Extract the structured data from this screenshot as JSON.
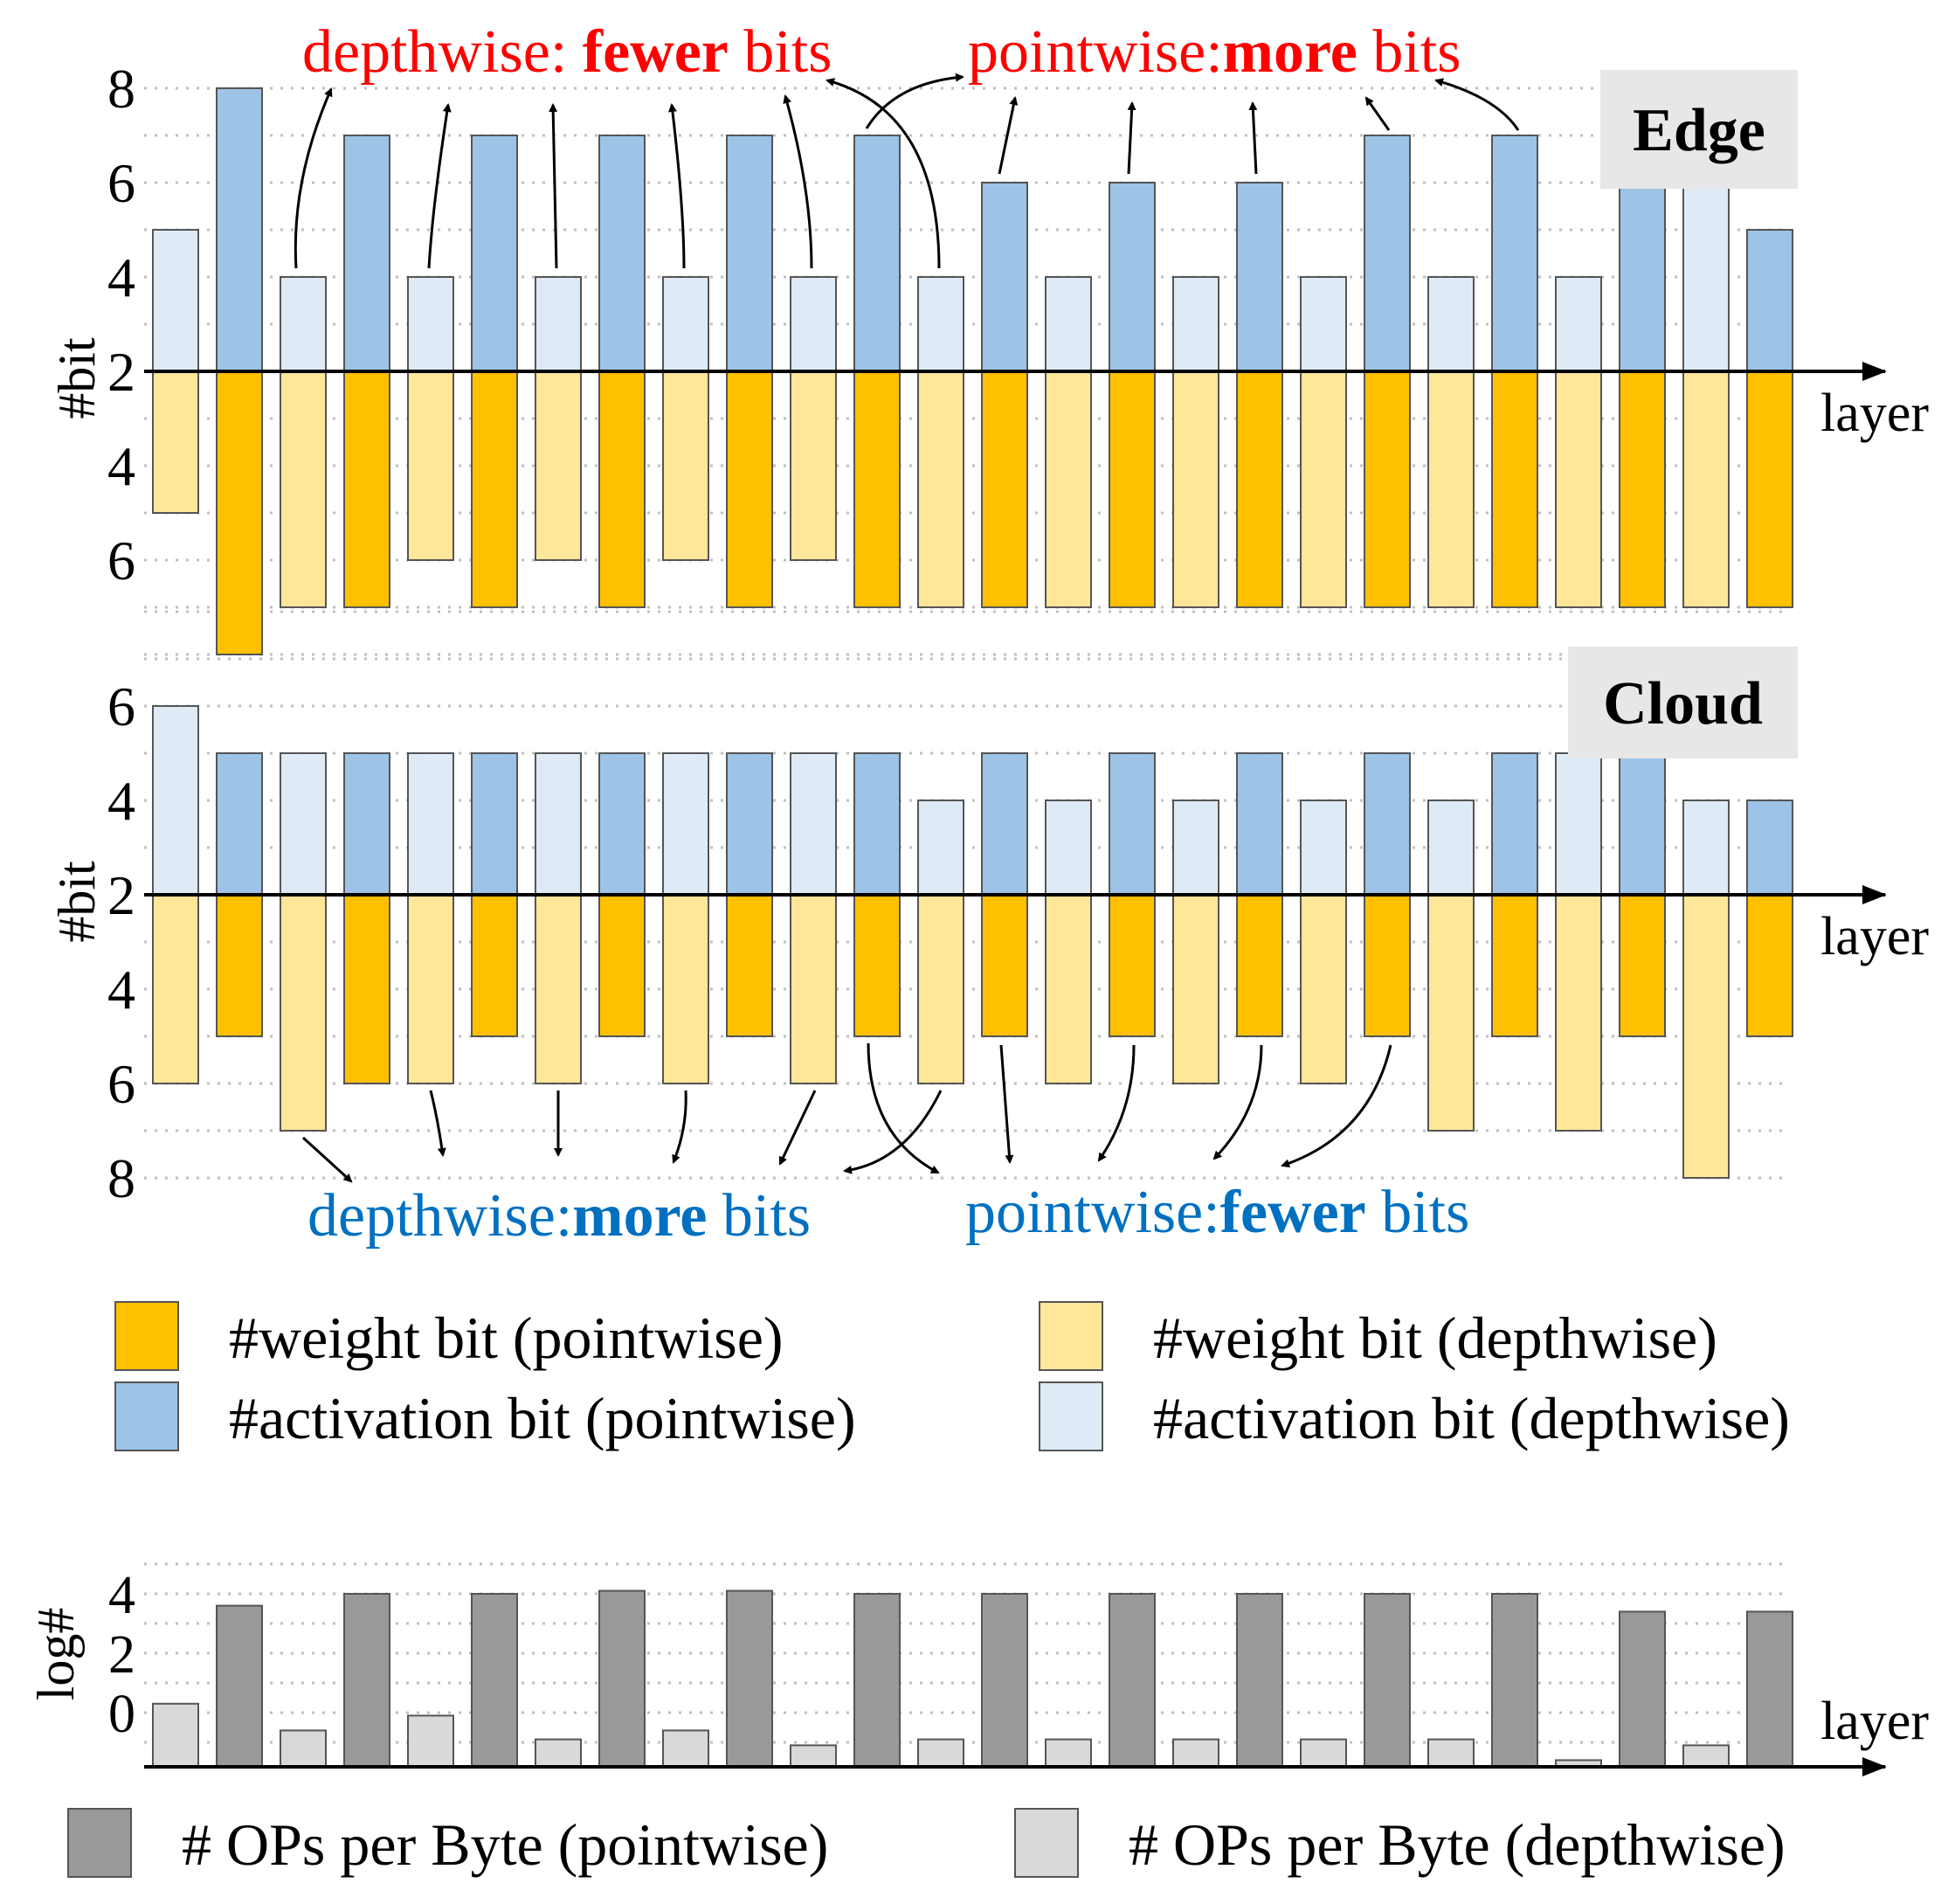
{
  "colors": {
    "pw_weight": "#FFC000",
    "dw_weight": "#FFE699",
    "pw_act": "#9DC3E6",
    "dw_act": "#DEEBF7",
    "ops_pw": "#999999",
    "ops_dw": "#D9D9D9",
    "red": "#FF0000",
    "blue": "#0070C0",
    "tag_bg": "#E7E7E7"
  },
  "chart_data": [
    {
      "name": "edge",
      "type": "bar",
      "tag": "Edge",
      "ylabel": "#bit",
      "xlabel": "layer",
      "y_ticks_up": [
        "8",
        "6",
        "4",
        "2"
      ],
      "y_ticks_down": [
        "4",
        "6"
      ],
      "layer_types": [
        "dw",
        "pw",
        "dw",
        "pw",
        "dw",
        "pw",
        "dw",
        "pw",
        "dw",
        "pw",
        "dw",
        "pw",
        "dw",
        "pw",
        "dw",
        "pw",
        "dw",
        "pw",
        "dw",
        "pw",
        "dw",
        "pw",
        "dw",
        "pw",
        "dw",
        "pw"
      ],
      "activation_bits": [
        5,
        8,
        4,
        7,
        4,
        7,
        4,
        7,
        4,
        7,
        4,
        7,
        4,
        6,
        4,
        6,
        4,
        6,
        4,
        7,
        4,
        7,
        4,
        6,
        6,
        5
      ],
      "weight_bits": [
        5,
        8,
        7,
        7,
        6,
        7,
        6,
        7,
        6,
        7,
        6,
        7,
        7,
        7,
        7,
        7,
        7,
        7,
        7,
        7,
        7,
        7,
        7,
        7,
        7,
        7
      ],
      "annotations": {
        "depthwise_prefix": "depthwise: ",
        "depthwise_bold": "fewer",
        "depthwise_suffix": " bits",
        "pointwise_prefix": "pointwise:",
        "pointwise_bold": "more",
        "pointwise_suffix": " bits"
      }
    },
    {
      "name": "cloud",
      "type": "bar",
      "tag": "Cloud",
      "ylabel": "#bit",
      "xlabel": "layer",
      "y_ticks_up": [
        "6",
        "4",
        "2"
      ],
      "y_ticks_down": [
        "4",
        "6",
        "8"
      ],
      "layer_types": [
        "dw",
        "pw",
        "dw",
        "pw",
        "dw",
        "pw",
        "dw",
        "pw",
        "dw",
        "pw",
        "dw",
        "pw",
        "dw",
        "pw",
        "dw",
        "pw",
        "dw",
        "pw",
        "dw",
        "pw",
        "dw",
        "pw",
        "dw",
        "pw",
        "dw",
        "pw"
      ],
      "activation_bits": [
        6,
        5,
        5,
        5,
        5,
        5,
        5,
        5,
        5,
        5,
        5,
        5,
        4,
        5,
        4,
        5,
        4,
        5,
        4,
        5,
        4,
        5,
        5,
        5,
        4,
        4
      ],
      "weight_bits": [
        6,
        5,
        7,
        6,
        6,
        5,
        6,
        5,
        6,
        5,
        6,
        5,
        6,
        5,
        6,
        5,
        6,
        5,
        6,
        5,
        7,
        5,
        7,
        5,
        8,
        5
      ],
      "annotations": {
        "depthwise_prefix": "depthwise:",
        "depthwise_bold": "more",
        "depthwise_suffix": " bits",
        "pointwise_prefix": "pointwise:",
        "pointwise_bold": "fewer",
        "pointwise_suffix": " bits"
      }
    },
    {
      "name": "ops",
      "type": "bar",
      "ylabel": "log#",
      "xlabel": "layer",
      "y_ticks": [
        "4",
        "2",
        "0"
      ],
      "layer_types": [
        "dw",
        "pw",
        "dw",
        "pw",
        "dw",
        "pw",
        "dw",
        "pw",
        "dw",
        "pw",
        "dw",
        "pw",
        "dw",
        "pw",
        "dw",
        "pw",
        "dw",
        "pw",
        "dw",
        "pw",
        "dw",
        "pw",
        "dw",
        "pw",
        "dw",
        "pw"
      ],
      "values": [
        0.3,
        3.6,
        -0.6,
        4.0,
        -0.1,
        4.0,
        -0.9,
        4.1,
        -0.6,
        4.1,
        -1.1,
        4.0,
        -0.9,
        4.0,
        -0.9,
        4.0,
        -0.9,
        4.0,
        -0.9,
        4.0,
        -0.9,
        4.0,
        -1.6,
        3.4,
        -1.1,
        3.4
      ],
      "ylim": [
        -2.0,
        5.6
      ]
    }
  ],
  "legend": {
    "pw_weight": "#weight bit (pointwise)",
    "dw_weight": "#weight bit (depthwise)",
    "pw_act": "#activation bit (pointwise)",
    "dw_act": "#activation bit (depthwise)",
    "ops_pw": "# OPs per Byte (pointwise)",
    "ops_dw": "# OPs per Byte (depthwise)"
  }
}
